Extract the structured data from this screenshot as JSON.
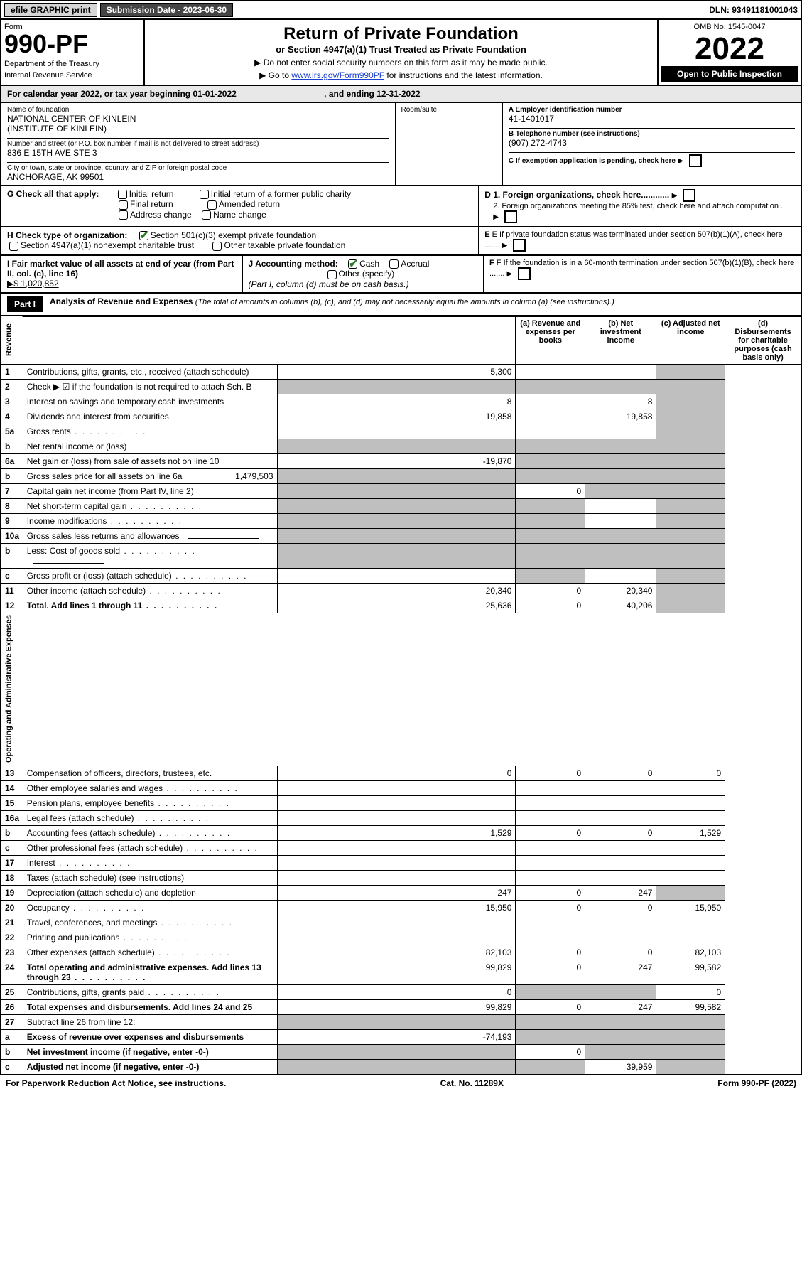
{
  "colors": {
    "link": "#1a3fcf",
    "shade": "#bfbfbf",
    "lightshade": "#e8e8e8",
    "checkmark": "#2a7a2a"
  },
  "topbar": {
    "efile": "efile GRAPHIC print",
    "submission_label": "Submission Date - 2023-06-30",
    "dln": "DLN: 93491181001043"
  },
  "header": {
    "form_label": "Form",
    "form_number": "990-PF",
    "dept": "Department of the Treasury",
    "irs": "Internal Revenue Service",
    "title": "Return of Private Foundation",
    "subtitle": "or Section 4947(a)(1) Trust Treated as Private Foundation",
    "note1": "▶ Do not enter social security numbers on this form as it may be made public.",
    "note2_pre": "▶ Go to ",
    "note2_link": "www.irs.gov/Form990PF",
    "note2_post": " for instructions and the latest information.",
    "omb": "OMB No. 1545-0047",
    "year": "2022",
    "open": "Open to Public Inspection"
  },
  "yearline": {
    "text1": "For calendar year 2022, or tax year beginning 01-01-2022",
    "text2": ", and ending 12-31-2022"
  },
  "id": {
    "name_label": "Name of foundation",
    "name": "NATIONAL CENTER OF KINLEIN\n(INSTITUTE OF KINLEIN)",
    "addr_label": "Number and street (or P.O. box number if mail is not delivered to street address)",
    "addr": "836 E 15TH AVE STE 3",
    "room_label": "Room/suite",
    "city_label": "City or town, state or province, country, and ZIP or foreign postal code",
    "city": "ANCHORAGE, AK  99501",
    "a_label": "A Employer identification number",
    "a_val": "41-1401017",
    "b_label": "B Telephone number (see instructions)",
    "b_val": "(907) 272-4743",
    "c_label": "C If exemption application is pending, check here"
  },
  "g": {
    "label": "G Check all that apply:",
    "opts": [
      "Initial return",
      "Final return",
      "Address change",
      "Initial return of a former public charity",
      "Amended return",
      "Name change"
    ]
  },
  "d": {
    "d1": "D 1. Foreign organizations, check here............",
    "d2": "2. Foreign organizations meeting the 85% test, check here and attach computation ..."
  },
  "h": {
    "label": "H Check type of organization:",
    "opt1": "Section 501(c)(3) exempt private foundation",
    "opt2": "Section 4947(a)(1) nonexempt charitable trust",
    "opt3": "Other taxable private foundation"
  },
  "e": "E  If private foundation status was terminated under section 507(b)(1)(A), check here .......",
  "i": {
    "label": "I Fair market value of all assets at end of year (from Part II, col. (c), line 16)",
    "val": "▶$  1,020,852"
  },
  "j": {
    "label": "J Accounting method:",
    "cash": "Cash",
    "accrual": "Accrual",
    "other": "Other (specify)",
    "note": "(Part I, column (d) must be on cash basis.)"
  },
  "f": "F  If the foundation is in a 60-month termination under section 507(b)(1)(B), check here .......",
  "part1": {
    "bar": "Part I",
    "title": "Analysis of Revenue and Expenses",
    "paren": "(The total of amounts in columns (b), (c), and (d) may not necessarily equal the amounts in column (a) (see instructions).)",
    "cols": {
      "a": "(a)   Revenue and expenses per books",
      "b": "(b)   Net investment income",
      "c": "(c)   Adjusted net income",
      "d": "(d)  Disbursements for charitable purposes (cash basis only)"
    }
  },
  "vlabels": {
    "rev": "Revenue",
    "exp": "Operating and Administrative Expenses"
  },
  "rows": [
    {
      "n": "1",
      "t": "Contributions, gifts, grants, etc., received (attach schedule)",
      "a": "5,300",
      "b": "",
      "c": "",
      "d": "",
      "d_shade": true
    },
    {
      "n": "2",
      "t": "Check ▶ ☑ if the foundation is not required to attach Sch. B",
      "a": "",
      "b": "",
      "c": "",
      "d": "",
      "all_shade": true,
      "bold_not": true
    },
    {
      "n": "3",
      "t": "Interest on savings and temporary cash investments",
      "a": "8",
      "b": "",
      "c": "8",
      "d": "",
      "d_shade": true
    },
    {
      "n": "4",
      "t": "Dividends and interest from securities",
      "a": "19,858",
      "b": "",
      "c": "19,858",
      "d": "",
      "d_shade": true
    },
    {
      "n": "5a",
      "t": "Gross rents",
      "a": "",
      "b": "",
      "c": "",
      "d": "",
      "d_shade": true,
      "dots": true
    },
    {
      "n": "b",
      "t": "Net rental income or (loss)",
      "a": "",
      "b": "",
      "c": "",
      "d": "",
      "all_shade": true,
      "inline": true
    },
    {
      "n": "6a",
      "t": "Net gain or (loss) from sale of assets not on line 10",
      "a": "-19,870",
      "b": "",
      "c": "",
      "d": "",
      "bcd_shade": true
    },
    {
      "n": "b",
      "t": "Gross sales price for all assets on line 6a",
      "inline_val": "1,479,503",
      "a": "",
      "b": "",
      "c": "",
      "d": "",
      "all_shade": true
    },
    {
      "n": "7",
      "t": "Capital gain net income (from Part IV, line 2)",
      "a": "",
      "b": "0",
      "c": "",
      "d": "",
      "a_shade": true,
      "cd_shade": true
    },
    {
      "n": "8",
      "t": "Net short-term capital gain",
      "a": "",
      "b": "",
      "c": "",
      "d": "",
      "ab_shade": true,
      "d_shade": true,
      "dots": true
    },
    {
      "n": "9",
      "t": "Income modifications",
      "a": "",
      "b": "",
      "c": "",
      "d": "",
      "ab_shade": true,
      "d_shade": true,
      "dots": true
    },
    {
      "n": "10a",
      "t": "Gross sales less returns and allowances",
      "a": "",
      "b": "",
      "c": "",
      "d": "",
      "all_shade": true,
      "inline": true
    },
    {
      "n": "b",
      "t": "Less: Cost of goods sold",
      "a": "",
      "b": "",
      "c": "",
      "d": "",
      "all_shade": true,
      "inline": true,
      "dots": true
    },
    {
      "n": "c",
      "t": "Gross profit or (loss) (attach schedule)",
      "a": "",
      "b": "",
      "c": "",
      "d": "",
      "b_shade": true,
      "d_shade": true,
      "dots": true
    },
    {
      "n": "11",
      "t": "Other income (attach schedule)",
      "a": "20,340",
      "b": "0",
      "c": "20,340",
      "d": "",
      "d_shade": true,
      "dots": true
    },
    {
      "n": "12",
      "t": "Total. Add lines 1 through 11",
      "a": "25,636",
      "b": "0",
      "c": "40,206",
      "d": "",
      "d_shade": true,
      "bold": true,
      "dots": true
    },
    {
      "n": "13",
      "t": "Compensation of officers, directors, trustees, etc.",
      "a": "0",
      "b": "0",
      "c": "0",
      "d": "0"
    },
    {
      "n": "14",
      "t": "Other employee salaries and wages",
      "a": "",
      "b": "",
      "c": "",
      "d": "",
      "dots": true
    },
    {
      "n": "15",
      "t": "Pension plans, employee benefits",
      "a": "",
      "b": "",
      "c": "",
      "d": "",
      "dots": true
    },
    {
      "n": "16a",
      "t": "Legal fees (attach schedule)",
      "a": "",
      "b": "",
      "c": "",
      "d": "",
      "dots": true
    },
    {
      "n": "b",
      "t": "Accounting fees (attach schedule)",
      "a": "1,529",
      "b": "0",
      "c": "0",
      "d": "1,529",
      "dots": true
    },
    {
      "n": "c",
      "t": "Other professional fees (attach schedule)",
      "a": "",
      "b": "",
      "c": "",
      "d": "",
      "dots": true
    },
    {
      "n": "17",
      "t": "Interest",
      "a": "",
      "b": "",
      "c": "",
      "d": "",
      "dots": true
    },
    {
      "n": "18",
      "t": "Taxes (attach schedule) (see instructions)",
      "a": "",
      "b": "",
      "c": "",
      "d": ""
    },
    {
      "n": "19",
      "t": "Depreciation (attach schedule) and depletion",
      "a": "247",
      "b": "0",
      "c": "247",
      "d": "",
      "d_shade": true
    },
    {
      "n": "20",
      "t": "Occupancy",
      "a": "15,950",
      "b": "0",
      "c": "0",
      "d": "15,950",
      "dots": true
    },
    {
      "n": "21",
      "t": "Travel, conferences, and meetings",
      "a": "",
      "b": "",
      "c": "",
      "d": "",
      "dots": true
    },
    {
      "n": "22",
      "t": "Printing and publications",
      "a": "",
      "b": "",
      "c": "",
      "d": "",
      "dots": true
    },
    {
      "n": "23",
      "t": "Other expenses (attach schedule)",
      "a": "82,103",
      "b": "0",
      "c": "0",
      "d": "82,103",
      "dots": true
    },
    {
      "n": "24",
      "t": "Total operating and administrative expenses. Add lines 13 through 23",
      "a": "99,829",
      "b": "0",
      "c": "247",
      "d": "99,582",
      "bold": true,
      "dots": true
    },
    {
      "n": "25",
      "t": "Contributions, gifts, grants paid",
      "a": "0",
      "b": "",
      "c": "",
      "d": "0",
      "bc_shade": true,
      "dots": true
    },
    {
      "n": "26",
      "t": "Total expenses and disbursements. Add lines 24 and 25",
      "a": "99,829",
      "b": "0",
      "c": "247",
      "d": "99,582",
      "bold": true
    },
    {
      "n": "27",
      "t": "Subtract line 26 from line 12:",
      "a": "",
      "b": "",
      "c": "",
      "d": "",
      "all_shade": true
    },
    {
      "n": "a",
      "t": "Excess of revenue over expenses and disbursements",
      "a": "-74,193",
      "b": "",
      "c": "",
      "d": "",
      "bcd_shade": true,
      "bold": true
    },
    {
      "n": "b",
      "t": "Net investment income (if negative, enter -0-)",
      "a": "",
      "b": "0",
      "c": "",
      "d": "",
      "a_shade": true,
      "cd_shade": true,
      "bold": true
    },
    {
      "n": "c",
      "t": "Adjusted net income (if negative, enter -0-)",
      "a": "",
      "b": "",
      "c": "39,959",
      "d": "",
      "ab_shade": true,
      "d_shade": true,
      "bold": true
    }
  ],
  "footer": {
    "left": "For Paperwork Reduction Act Notice, see instructions.",
    "mid": "Cat. No. 11289X",
    "right": "Form 990-PF (2022)"
  }
}
